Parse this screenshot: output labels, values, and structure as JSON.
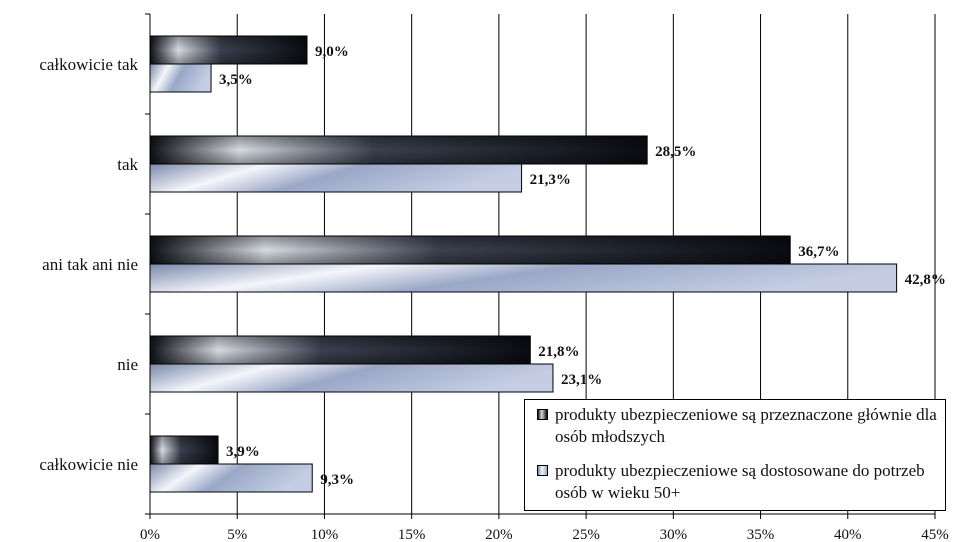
{
  "chart_data": {
    "type": "bar",
    "orientation": "horizontal",
    "categories": [
      "całkowicie tak",
      "tak",
      "ani tak ani nie",
      "nie",
      "całkowicie nie"
    ],
    "series": [
      {
        "name": "produkty ubezpieczeniowe są przeznaczone głównie dla osób młodszych",
        "values": [
          9.0,
          28.5,
          36.7,
          21.8,
          3.9
        ],
        "labels": [
          "9,0%",
          "28,5%",
          "36,7%",
          "21,8%",
          "3,9%"
        ],
        "color": "#1a1f2b"
      },
      {
        "name": "produkty ubezpieczeniowe są dostosowane do potrzeb osób w wieku 50+",
        "values": [
          3.5,
          21.3,
          42.8,
          23.1,
          9.3
        ],
        "labels": [
          "3,5%",
          "21,3%",
          "42,8%",
          "23,1%",
          "9,3%"
        ],
        "color": "#b8c4e0"
      }
    ],
    "xlim": [
      0,
      45
    ],
    "xticks": [
      0,
      5,
      10,
      15,
      20,
      25,
      30,
      35,
      40,
      45
    ],
    "xtick_labels": [
      "0%",
      "5%",
      "10%",
      "15%",
      "20%",
      "25%",
      "30%",
      "35%",
      "40%",
      "45%"
    ],
    "grid": true,
    "legend_position": "bottom-right"
  }
}
